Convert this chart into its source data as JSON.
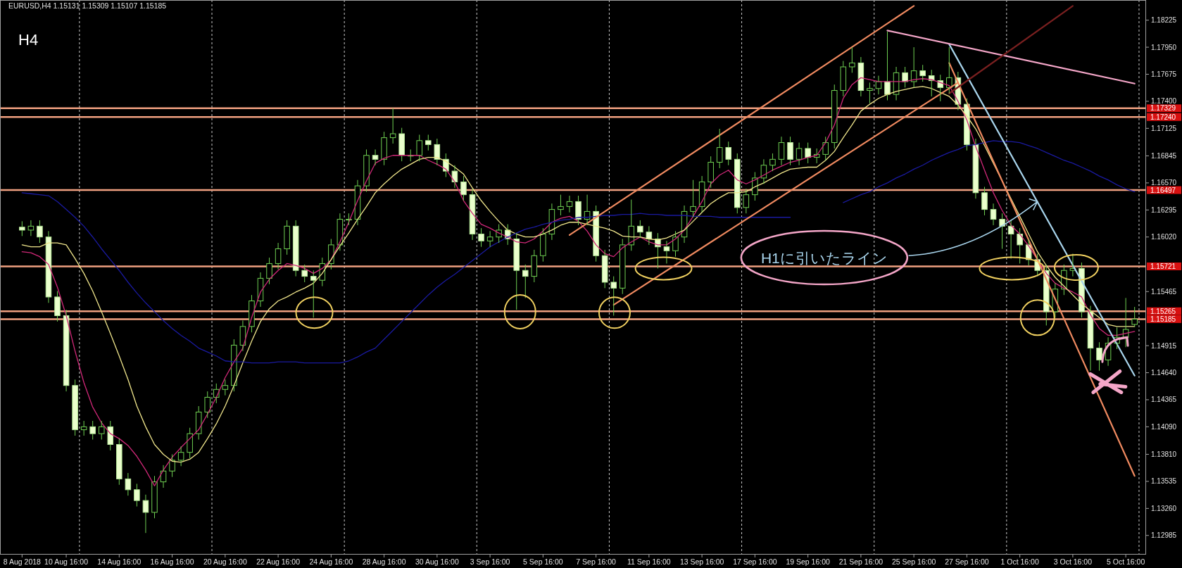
{
  "chart_data": {
    "type": "candlestick",
    "title": "EURUSD,H4 1.15131 1.15309 1.15107 1.15185",
    "categories": [
      "8 Aug 2018",
      null,
      null,
      null,
      null,
      "10 Aug 16:00",
      null,
      null,
      null,
      null,
      null,
      "14 Aug 16:00",
      null,
      null,
      null,
      null,
      null,
      "16 Aug 16:00",
      null,
      null,
      null,
      null,
      null,
      "20 Aug 16:00",
      null,
      null,
      null,
      null,
      null,
      "22 Aug 16:00",
      null,
      null,
      null,
      null,
      null,
      "24 Aug 16:00",
      null,
      null,
      null,
      null,
      null,
      "28 Aug 16:00",
      null,
      null,
      null,
      null,
      null,
      "30 Aug 16:00",
      null,
      null,
      null,
      null,
      null,
      "3 Sep 16:00",
      null,
      null,
      null,
      null,
      null,
      "5 Sep 16:00",
      null,
      null,
      null,
      null,
      null,
      "7 Sep 16:00",
      null,
      null,
      null,
      null,
      null,
      "11 Sep 16:00",
      null,
      null,
      null,
      null,
      null,
      "13 Sep 16:00",
      null,
      null,
      null,
      null,
      null,
      "17 Sep 16:00",
      null,
      null,
      null,
      null,
      null,
      "19 Sep 16:00",
      null,
      null,
      null,
      null,
      null,
      "21 Sep 16:00",
      null,
      null,
      null,
      null,
      null,
      "25 Sep 16:00",
      null,
      null,
      null,
      null,
      null,
      "27 Sep 16:00",
      null,
      null,
      null,
      null,
      null,
      "1 Oct 16:00",
      null,
      null,
      null,
      null,
      null,
      "3 Oct 16:00",
      null,
      null,
      null,
      null,
      null,
      "5 Oct 16:00",
      null
    ],
    "ohlc": [
      [
        1.1612,
        1.1618,
        1.1603,
        1.1609
      ],
      [
        1.1609,
        1.1619,
        1.1603,
        1.1613
      ],
      [
        1.1613,
        1.1619,
        1.1596,
        1.1602
      ],
      [
        1.1602,
        1.1608,
        1.1535,
        1.1541
      ],
      [
        1.1541,
        1.1547,
        1.1516,
        1.1522
      ],
      [
        1.1522,
        1.1528,
        1.1445,
        1.1451
      ],
      [
        1.1451,
        1.1457,
        1.14,
        1.1406
      ],
      [
        1.1406,
        1.1415,
        1.14,
        1.1409
      ],
      [
        1.1409,
        1.1415,
        1.1396,
        1.1402
      ],
      [
        1.1402,
        1.1415,
        1.1396,
        1.1409
      ],
      [
        1.1409,
        1.1415,
        1.1385,
        1.1391
      ],
      [
        1.1391,
        1.1397,
        1.135,
        1.1356
      ],
      [
        1.1356,
        1.1362,
        1.1339,
        1.1345
      ],
      [
        1.1345,
        1.1351,
        1.1328,
        1.1334
      ],
      [
        1.1334,
        1.134,
        1.1301,
        1.1322
      ],
      [
        1.1322,
        1.1359,
        1.1316,
        1.1353
      ],
      [
        1.1353,
        1.137,
        1.1347,
        1.1364
      ],
      [
        1.1364,
        1.1381,
        1.1358,
        1.1375
      ],
      [
        1.1375,
        1.1389,
        1.1369,
        1.1383
      ],
      [
        1.1383,
        1.1408,
        1.1377,
        1.1402
      ],
      [
        1.1402,
        1.143,
        1.1396,
        1.1424
      ],
      [
        1.1424,
        1.1445,
        1.1418,
        1.1439
      ],
      [
        1.1439,
        1.1453,
        1.1433,
        1.1447
      ],
      [
        1.1447,
        1.1457,
        1.1441,
        1.1451
      ],
      [
        1.1451,
        1.1498,
        1.1445,
        1.1492
      ],
      [
        1.1492,
        1.1517,
        1.1486,
        1.1511
      ],
      [
        1.1511,
        1.1543,
        1.1505,
        1.1537
      ],
      [
        1.1537,
        1.1566,
        1.1531,
        1.156
      ],
      [
        1.156,
        1.1581,
        1.1554,
        1.1575
      ],
      [
        1.1575,
        1.1596,
        1.1569,
        1.159
      ],
      [
        1.159,
        1.1619,
        1.1584,
        1.1613
      ],
      [
        1.1613,
        1.1619,
        1.1562,
        1.1568
      ],
      [
        1.1568,
        1.1574,
        1.1556,
        1.1562
      ],
      [
        1.1562,
        1.1568,
        1.152,
        1.1558
      ],
      [
        1.1558,
        1.1581,
        1.1552,
        1.1575
      ],
      [
        1.1575,
        1.16,
        1.1569,
        1.1594
      ],
      [
        1.1594,
        1.1626,
        1.1588,
        1.162
      ],
      [
        1.162,
        1.1626,
        1.1614,
        1.162
      ],
      [
        1.162,
        1.166,
        1.1614,
        1.1654
      ],
      [
        1.1654,
        1.1691,
        1.1648,
        1.1685
      ],
      [
        1.1685,
        1.1691,
        1.1675,
        1.1681
      ],
      [
        1.1681,
        1.1709,
        1.1675,
        1.1703
      ],
      [
        1.1703,
        1.1733,
        1.1697,
        1.1707
      ],
      [
        1.1707,
        1.1713,
        1.1679,
        1.1685
      ],
      [
        1.1685,
        1.1691,
        1.1679,
        1.1685
      ],
      [
        1.1685,
        1.1706,
        1.1679,
        1.17
      ],
      [
        1.17,
        1.1706,
        1.169,
        1.1696
      ],
      [
        1.1696,
        1.1702,
        1.1675,
        1.1681
      ],
      [
        1.1681,
        1.1687,
        1.1663,
        1.1669
      ],
      [
        1.1669,
        1.1675,
        1.1652,
        1.1658
      ],
      [
        1.1658,
        1.1664,
        1.1639,
        1.1645
      ],
      [
        1.1645,
        1.1651,
        1.1599,
        1.1605
      ],
      [
        1.1605,
        1.1611,
        1.1592,
        1.1598
      ],
      [
        1.1598,
        1.1608,
        1.1592,
        1.1602
      ],
      [
        1.1602,
        1.1615,
        1.1596,
        1.1609
      ],
      [
        1.1609,
        1.1615,
        1.1594,
        1.16
      ],
      [
        1.16,
        1.1606,
        1.1528,
        1.1568
      ],
      [
        1.1568,
        1.1574,
        1.154,
        1.1562
      ],
      [
        1.1562,
        1.1589,
        1.1556,
        1.1583
      ],
      [
        1.1583,
        1.1611,
        1.1577,
        1.1605
      ],
      [
        1.1605,
        1.1636,
        1.1599,
        1.163
      ],
      [
        1.163,
        1.1645,
        1.1624,
        1.1633
      ],
      [
        1.1633,
        1.1644,
        1.1627,
        1.1638
      ],
      [
        1.1638,
        1.1644,
        1.1614,
        1.162
      ],
      [
        1.162,
        1.1645,
        1.1614,
        1.1628
      ],
      [
        1.1628,
        1.1634,
        1.1577,
        1.1583
      ],
      [
        1.1583,
        1.1589,
        1.155,
        1.1556
      ],
      [
        1.1556,
        1.1562,
        1.1522,
        1.155
      ],
      [
        1.155,
        1.16,
        1.1544,
        1.1594
      ],
      [
        1.1594,
        1.164,
        1.1588,
        1.1613
      ],
      [
        1.1613,
        1.1619,
        1.1601,
        1.1607
      ],
      [
        1.1607,
        1.1613,
        1.1594,
        1.16
      ],
      [
        1.16,
        1.1606,
        1.157,
        1.1592
      ],
      [
        1.1592,
        1.1598,
        1.1575,
        1.1588
      ],
      [
        1.1588,
        1.1608,
        1.1582,
        1.1602
      ],
      [
        1.1602,
        1.1634,
        1.1596,
        1.1628
      ],
      [
        1.1628,
        1.166,
        1.1622,
        1.1633
      ],
      [
        1.1633,
        1.1664,
        1.1627,
        1.1658
      ],
      [
        1.1658,
        1.1684,
        1.1652,
        1.1678
      ],
      [
        1.1678,
        1.1712,
        1.1672,
        1.1693
      ],
      [
        1.1693,
        1.1699,
        1.1675,
        1.1681
      ],
      [
        1.1681,
        1.1687,
        1.1626,
        1.1632
      ],
      [
        1.1632,
        1.1651,
        1.1626,
        1.1645
      ],
      [
        1.1645,
        1.1668,
        1.1639,
        1.1662
      ],
      [
        1.1662,
        1.1681,
        1.1656,
        1.1675
      ],
      [
        1.1675,
        1.1687,
        1.1669,
        1.1681
      ],
      [
        1.1681,
        1.1704,
        1.1675,
        1.1698
      ],
      [
        1.1698,
        1.1704,
        1.1675,
        1.1681
      ],
      [
        1.1681,
        1.1698,
        1.1675,
        1.1692
      ],
      [
        1.1692,
        1.1698,
        1.1677,
        1.1683
      ],
      [
        1.1683,
        1.1692,
        1.1677,
        1.1686
      ],
      [
        1.1686,
        1.1704,
        1.168,
        1.1698
      ],
      [
        1.1698,
        1.1757,
        1.1692,
        1.1751
      ],
      [
        1.1751,
        1.1781,
        1.1745,
        1.1775
      ],
      [
        1.1775,
        1.1795,
        1.1769,
        1.1779
      ],
      [
        1.1779,
        1.1785,
        1.1745,
        1.1751
      ],
      [
        1.1751,
        1.1759,
        1.1738,
        1.1753
      ],
      [
        1.1753,
        1.1766,
        1.1747,
        1.176
      ],
      [
        1.176,
        1.1811,
        1.1741,
        1.1747
      ],
      [
        1.1747,
        1.1775,
        1.1741,
        1.1769
      ],
      [
        1.1769,
        1.1775,
        1.1754,
        1.176
      ],
      [
        1.176,
        1.1795,
        1.1754,
        1.1771
      ],
      [
        1.1771,
        1.1777,
        1.176,
        1.1766
      ],
      [
        1.1766,
        1.1772,
        1.1745,
        1.1761
      ],
      [
        1.1761,
        1.1767,
        1.174,
        1.1754
      ],
      [
        1.1754,
        1.1795,
        1.1748,
        1.1764
      ],
      [
        1.1764,
        1.177,
        1.1731,
        1.1737
      ],
      [
        1.1737,
        1.1743,
        1.169,
        1.1696
      ],
      [
        1.1696,
        1.1702,
        1.1641,
        1.1647
      ],
      [
        1.1647,
        1.1653,
        1.1624,
        1.163
      ],
      [
        1.163,
        1.1636,
        1.1614,
        1.162
      ],
      [
        1.162,
        1.1626,
        1.159,
        1.1613
      ],
      [
        1.1613,
        1.1619,
        1.158,
        1.1605
      ],
      [
        1.1605,
        1.1611,
        1.1575,
        1.1594
      ],
      [
        1.1594,
        1.16,
        1.1573,
        1.1579
      ],
      [
        1.1579,
        1.1585,
        1.1562,
        1.1568
      ],
      [
        1.1568,
        1.1574,
        1.1512,
        1.1526
      ],
      [
        1.1526,
        1.1555,
        1.152,
        1.1549
      ],
      [
        1.1549,
        1.1574,
        1.1543,
        1.1568
      ],
      [
        1.1568,
        1.1585,
        1.1562,
        1.157
      ],
      [
        1.157,
        1.1576,
        1.152,
        1.1526
      ],
      [
        1.1526,
        1.1532,
        1.1466,
        1.1489
      ],
      [
        1.1489,
        1.1495,
        1.1466,
        1.1477
      ],
      [
        1.1477,
        1.15,
        1.1471,
        1.1494
      ],
      [
        1.1494,
        1.151,
        1.1488,
        1.15
      ],
      [
        1.15,
        1.154,
        1.149,
        1.1508
      ],
      [
        1.15131,
        1.15309,
        1.15107,
        1.15185
      ]
    ],
    "series": [
      {
        "type": "line",
        "color": "#d02878",
        "values": [
          1.1587,
          1.1586,
          1.1582,
          1.1574,
          1.1551,
          1.1522,
          1.1486,
          1.1454,
          1.1429,
          1.1413,
          1.1402,
          1.1397,
          1.139,
          1.1379,
          1.1365,
          1.1349,
          1.1365,
          1.1378,
          1.1388,
          1.1397,
          1.1406,
          1.1422,
          1.1439,
          1.1459,
          1.1475,
          1.1489,
          1.152,
          1.1546,
          1.1559,
          1.1568,
          1.1575,
          1.1573,
          1.157,
          1.1565,
          1.157,
          1.1579,
          1.1597,
          1.1617,
          1.1639,
          1.1659,
          1.1677,
          1.1682,
          1.1685,
          1.1685,
          1.1685,
          1.1685,
          1.168,
          1.1676,
          1.1671,
          1.1658,
          1.1639,
          1.1626,
          1.1615,
          1.1611,
          1.1606,
          1.1602,
          1.1597,
          1.1596,
          1.16,
          1.1608,
          1.1617,
          1.1621,
          1.1623,
          1.1618,
          1.1608,
          1.1594,
          1.1585,
          1.1582,
          1.1591,
          1.1597,
          1.1602,
          1.1597,
          1.1594,
          1.1594,
          1.16,
          1.1609,
          1.1623,
          1.1638,
          1.1656,
          1.1665,
          1.167,
          1.166,
          1.1656,
          1.166,
          1.1665,
          1.167,
          1.1674,
          1.1678,
          1.168,
          1.1683,
          1.1685,
          1.1698,
          1.1716,
          1.1743,
          1.1757,
          1.1764,
          1.1762,
          1.176,
          1.176,
          1.176,
          1.176,
          1.1762,
          1.1763,
          1.1762,
          1.1759,
          1.1756,
          1.174,
          1.1721,
          1.1694,
          1.167,
          1.1647,
          1.1629,
          1.1614,
          1.1605,
          1.1593,
          1.1579,
          1.1565,
          1.1555,
          1.155,
          1.1546,
          1.1541,
          1.1523,
          1.1509,
          1.1502,
          1.1502,
          1.1504,
          1.1506
        ]
      },
      {
        "type": "line",
        "color": "#f0e68c",
        "values": [
          1.1594,
          1.1592,
          1.1592,
          1.1596,
          1.1596,
          1.1594,
          1.158,
          1.1565,
          1.1547,
          1.1526,
          1.1504,
          1.1481,
          1.1457,
          1.143,
          1.1409,
          1.1391,
          1.1381,
          1.1374,
          1.1373,
          1.1376,
          1.1383,
          1.1397,
          1.1412,
          1.143,
          1.1451,
          1.1474,
          1.1496,
          1.1516,
          1.1529,
          1.1537,
          1.1541,
          1.1546,
          1.155,
          1.1555,
          1.1565,
          1.1579,
          1.1593,
          1.1606,
          1.162,
          1.1633,
          1.1647,
          1.1656,
          1.1664,
          1.1671,
          1.1676,
          1.1681,
          1.1683,
          1.1683,
          1.1679,
          1.1673,
          1.1666,
          1.1652,
          1.1639,
          1.1628,
          1.1618,
          1.1609,
          1.1605,
          1.1602,
          1.1602,
          1.1605,
          1.1609,
          1.1614,
          1.1617,
          1.1617,
          1.1615,
          1.1613,
          1.1611,
          1.1608,
          1.1603,
          1.1602,
          1.1602,
          1.16,
          1.1599,
          1.1601,
          1.1605,
          1.1609,
          1.1618,
          1.1627,
          1.1636,
          1.1642,
          1.1647,
          1.1647,
          1.1648,
          1.1653,
          1.1657,
          1.1662,
          1.1667,
          1.1671,
          1.1672,
          1.1673,
          1.1673,
          1.168,
          1.1689,
          1.1703,
          1.1716,
          1.173,
          1.1737,
          1.1743,
          1.1747,
          1.175,
          1.1752,
          1.1754,
          1.1755,
          1.1753,
          1.1749,
          1.1745,
          1.1736,
          1.1725,
          1.1712,
          1.1695,
          1.1677,
          1.1659,
          1.1641,
          1.1623,
          1.1605,
          1.1587,
          1.1573,
          1.1561,
          1.1552,
          1.1543,
          1.1534,
          1.1527,
          1.152,
          1.1513,
          1.1511,
          1.1511,
          1.1511
        ]
      },
      {
        "type": "line",
        "color": "#1a1aa0",
        "values": [
          1.1647,
          1.1646,
          1.1645,
          1.1644,
          1.1638,
          1.163,
          1.1622,
          1.1613,
          1.1602,
          1.159,
          1.1579,
          1.1568,
          1.1556,
          1.1545,
          1.1535,
          1.1526,
          1.1517,
          1.1509,
          1.1502,
          1.1496,
          1.1489,
          1.1485,
          1.1481,
          1.1476,
          1.1475,
          1.1475,
          1.1474,
          1.1474,
          1.1474,
          1.1475,
          1.1475,
          1.1475,
          1.1474,
          1.1474,
          1.1474,
          1.1474,
          1.1474,
          1.1476,
          1.148,
          1.1485,
          1.1489,
          1.1498,
          1.1507,
          1.1516,
          1.1525,
          1.1534,
          1.1543,
          1.1551,
          1.1558,
          1.1564,
          1.1571,
          1.1578,
          1.1585,
          1.1592,
          1.1597,
          1.1602,
          1.1606,
          1.161,
          1.1612,
          1.1615,
          1.1617,
          1.1619,
          1.162,
          1.1622,
          1.1622,
          1.1623,
          1.1624,
          1.1624,
          1.1625,
          1.1625,
          1.1626,
          1.1625,
          1.1625,
          1.1624,
          1.1624,
          1.1624,
          1.1623,
          1.1623,
          1.1623,
          1.1622,
          1.1622,
          1.1622,
          1.1622,
          1.1622,
          1.1622,
          1.1622,
          1.1622,
          1.1622,
          null,
          null,
          null,
          null,
          null,
          1.1637,
          1.1641,
          1.1645,
          1.1648,
          1.1653,
          1.1657,
          1.1662,
          1.1666,
          1.1671,
          1.1675,
          1.168,
          1.1684,
          1.1688,
          1.1691,
          1.1695,
          1.1696,
          1.1698,
          1.17,
          1.1699,
          1.1699,
          1.1698,
          1.1695,
          1.1692,
          1.1688,
          1.1684,
          1.168,
          1.1677,
          1.1673,
          1.1669,
          1.1664,
          1.166,
          1.1655,
          1.1651,
          1.1648
        ]
      },
      {
        "type": "line",
        "color": "#f08a60",
        "values": [
          null,
          null,
          null,
          null,
          null,
          null,
          null,
          null,
          null,
          null,
          null,
          null,
          null,
          null,
          null,
          null,
          null,
          null,
          null,
          null,
          null,
          null,
          null,
          null,
          null,
          null,
          null,
          null,
          null,
          null,
          null,
          null,
          null,
          null,
          null,
          null,
          null,
          null,
          null,
          null,
          null,
          null,
          null,
          null,
          null,
          null,
          null,
          null,
          null,
          null,
          null,
          null,
          null,
          null,
          null,
          null,
          null,
          null,
          null,
          null,
          null,
          null,
          1.1604,
          null,
          null,
          null,
          null,
          null,
          null,
          null,
          null,
          null,
          null,
          null,
          null,
          null,
          null,
          null,
          null,
          null,
          null,
          null,
          null,
          null,
          null,
          null,
          null,
          null,
          null,
          null,
          null,
          null,
          null,
          null,
          null,
          null,
          null,
          null,
          null,
          null,
          null,
          1.1837,
          null,
          null,
          null,
          null,
          null,
          null,
          null,
          null,
          null,
          null,
          null,
          null,
          null,
          null,
          null,
          null,
          null,
          null,
          null,
          null,
          null,
          null,
          null,
          null,
          null
        ]
      },
      {
        "type": "line",
        "color": "#f08a60",
        "values": [
          null,
          null,
          null,
          null,
          null,
          null,
          null,
          null,
          null,
          null,
          null,
          null,
          null,
          null,
          null,
          null,
          null,
          null,
          null,
          null,
          null,
          null,
          null,
          null,
          null,
          null,
          null,
          null,
          null,
          null,
          null,
          null,
          null,
          null,
          null,
          null,
          null,
          null,
          null,
          null,
          null,
          null,
          null,
          null,
          null,
          null,
          null,
          null,
          null,
          null,
          null,
          null,
          null,
          null,
          null,
          null,
          null,
          null,
          null,
          null,
          null,
          null,
          null,
          null,
          null,
          null,
          null,
          1.1533,
          null,
          null,
          null,
          null,
          null,
          null,
          null,
          null,
          null,
          null,
          null,
          null,
          null,
          null,
          null,
          null,
          null,
          null,
          null,
          null,
          null,
          null,
          null,
          null,
          null,
          null,
          null,
          null,
          null,
          null,
          null,
          null,
          null,
          null,
          null,
          null,
          null,
          null,
          1.1759,
          null,
          null,
          null,
          null,
          null,
          null,
          null,
          null,
          null,
          null,
          null,
          null,
          null,
          null,
          null,
          null,
          null,
          null,
          null,
          null
        ]
      },
      {
        "type": "line",
        "color": "#f08a60",
        "values": [
          null,
          null,
          null,
          null,
          null,
          null,
          null,
          null,
          null,
          null,
          null,
          null,
          null,
          null,
          null,
          null,
          null,
          null,
          null,
          null,
          null,
          null,
          null,
          null,
          null,
          null,
          null,
          null,
          null,
          null,
          null,
          null,
          null,
          null,
          null,
          null,
          null,
          null,
          null,
          null,
          null,
          null,
          null,
          null,
          null,
          null,
          null,
          null,
          null,
          null,
          null,
          null,
          null,
          null,
          null,
          null,
          null,
          null,
          null,
          null,
          null,
          null,
          null,
          null,
          null,
          null,
          null,
          null,
          null,
          null,
          null,
          null,
          null,
          null,
          null,
          null,
          null,
          null,
          null,
          null,
          null,
          null,
          null,
          null,
          null,
          null,
          null,
          null,
          null,
          null,
          null,
          null,
          null,
          null,
          null,
          null,
          null,
          null,
          null,
          null,
          null,
          null,
          null,
          null,
          null,
          1.1779,
          null,
          null,
          null,
          null,
          null,
          null,
          null,
          null,
          null,
          null,
          null,
          null,
          null,
          null,
          null,
          null,
          null,
          null,
          null,
          null,
          1.1359
        ]
      },
      {
        "type": "line",
        "color": "#a8d4ec",
        "values": [
          null,
          null,
          null,
          null,
          null,
          null,
          null,
          null,
          null,
          null,
          null,
          null,
          null,
          null,
          null,
          null,
          null,
          null,
          null,
          null,
          null,
          null,
          null,
          null,
          null,
          null,
          null,
          null,
          null,
          null,
          null,
          null,
          null,
          null,
          null,
          null,
          null,
          null,
          null,
          null,
          null,
          null,
          null,
          null,
          null,
          null,
          null,
          null,
          null,
          null,
          null,
          null,
          null,
          null,
          null,
          null,
          null,
          null,
          null,
          null,
          null,
          null,
          null,
          null,
          null,
          null,
          null,
          null,
          null,
          null,
          null,
          null,
          null,
          null,
          null,
          null,
          null,
          null,
          null,
          null,
          null,
          null,
          null,
          null,
          null,
          null,
          null,
          null,
          null,
          null,
          null,
          null,
          null,
          null,
          null,
          null,
          null,
          null,
          null,
          null,
          null,
          null,
          null,
          null,
          null,
          1.1798,
          null,
          null,
          null,
          null,
          null,
          null,
          null,
          null,
          null,
          null,
          null,
          null,
          null,
          null,
          null,
          null,
          null,
          null,
          null,
          null,
          1.1461
        ]
      },
      {
        "type": "line",
        "color": "#f4a6c8",
        "values": [
          null,
          null,
          null,
          null,
          null,
          null,
          null,
          null,
          null,
          null,
          null,
          null,
          null,
          null,
          null,
          null,
          null,
          null,
          null,
          null,
          null,
          null,
          null,
          null,
          null,
          null,
          null,
          null,
          null,
          null,
          null,
          null,
          null,
          null,
          null,
          null,
          null,
          null,
          null,
          null,
          null,
          null,
          null,
          null,
          null,
          null,
          null,
          null,
          null,
          null,
          null,
          null,
          null,
          null,
          null,
          null,
          null,
          null,
          null,
          null,
          null,
          null,
          null,
          null,
          null,
          null,
          null,
          null,
          null,
          null,
          null,
          null,
          null,
          null,
          null,
          null,
          null,
          null,
          null,
          null,
          null,
          null,
          null,
          null,
          null,
          null,
          null,
          null,
          null,
          null,
          null,
          null,
          null,
          null,
          null,
          null,
          null,
          null,
          1.1812,
          null,
          null,
          null,
          null,
          null,
          null,
          null,
          null,
          null,
          null,
          null,
          null,
          null,
          null,
          null,
          null,
          null,
          null,
          null,
          null,
          null,
          null,
          null,
          null,
          null,
          null,
          null,
          1.1758
        ]
      },
      {
        "type": "line",
        "color": "#7a2020",
        "values": [
          null,
          null,
          null,
          null,
          null,
          null,
          null,
          null,
          null,
          null,
          null,
          null,
          null,
          null,
          null,
          null,
          null,
          null,
          null,
          null,
          null,
          null,
          null,
          null,
          null,
          null,
          null,
          null,
          null,
          null,
          null,
          null,
          null,
          null,
          null,
          null,
          null,
          null,
          null,
          null,
          null,
          null,
          null,
          null,
          null,
          null,
          null,
          null,
          null,
          null,
          null,
          null,
          null,
          null,
          null,
          null,
          null,
          null,
          null,
          null,
          null,
          null,
          null,
          null,
          null,
          null,
          null,
          null,
          null,
          null,
          null,
          null,
          null,
          null,
          null,
          null,
          null,
          null,
          null,
          null,
          null,
          null,
          null,
          null,
          null,
          null,
          null,
          null,
          null,
          null,
          null,
          null,
          null,
          null,
          null,
          null,
          null,
          null,
          null,
          null,
          null,
          null,
          null,
          null,
          null,
          1.1748,
          null,
          null,
          null,
          null,
          null,
          null,
          null,
          null,
          null,
          null,
          null,
          null,
          null,
          1.1837,
          null,
          null,
          null,
          null,
          null,
          null,
          null
        ]
      }
    ],
    "ylim": [
      1.1279,
      1.1843
    ],
    "yticks": [
      {
        "value": 1.18225,
        "label": "1.18225"
      },
      {
        "value": 1.1795,
        "label": "1.17950"
      },
      {
        "value": 1.17675,
        "label": "1.17675"
      },
      {
        "value": 1.174,
        "label": "1.17400"
      },
      {
        "value": 1.17125,
        "label": "1.17125"
      },
      {
        "value": 1.16845,
        "label": "1.16845"
      },
      {
        "value": 1.1657,
        "label": "1.16570"
      },
      {
        "value": 1.16295,
        "label": "1.16295"
      },
      {
        "value": 1.1602,
        "label": "1.16020"
      },
      {
        "value": 1.15465,
        "label": "1.15465"
      },
      {
        "value": 1.14915,
        "label": "1.14915"
      },
      {
        "value": 1.1464,
        "label": "1.14640"
      },
      {
        "value": 1.14365,
        "label": "1.14365"
      },
      {
        "value": 1.1409,
        "label": "1.14090"
      },
      {
        "value": 1.1381,
        "label": "1.13810"
      },
      {
        "value": 1.13535,
        "label": "1.13535"
      },
      {
        "value": 1.1326,
        "label": "1.13260"
      },
      {
        "value": 1.12985,
        "label": "1.12985"
      }
    ],
    "ref_lines": [
      {
        "axis": "y",
        "value": 1.17329,
        "label": "1.17329",
        "color": "#f0a080"
      },
      {
        "axis": "y",
        "value": 1.1724,
        "label": "1.17240",
        "color": "#f0a080"
      },
      {
        "axis": "y",
        "value": 1.16497,
        "label": "1.16497",
        "color": "#f0a080"
      },
      {
        "axis": "y",
        "value": 1.15721,
        "label": "1.15721",
        "color": "#f0a080"
      },
      {
        "axis": "y",
        "value": 1.15265,
        "label": "1.15265",
        "color": "#f0a080"
      },
      {
        "axis": "y",
        "value": 1.15185,
        "label": "1.15185",
        "color": "#f0a080"
      }
    ],
    "annotations": [
      "H4",
      "H1に引いたライン"
    ]
  }
}
